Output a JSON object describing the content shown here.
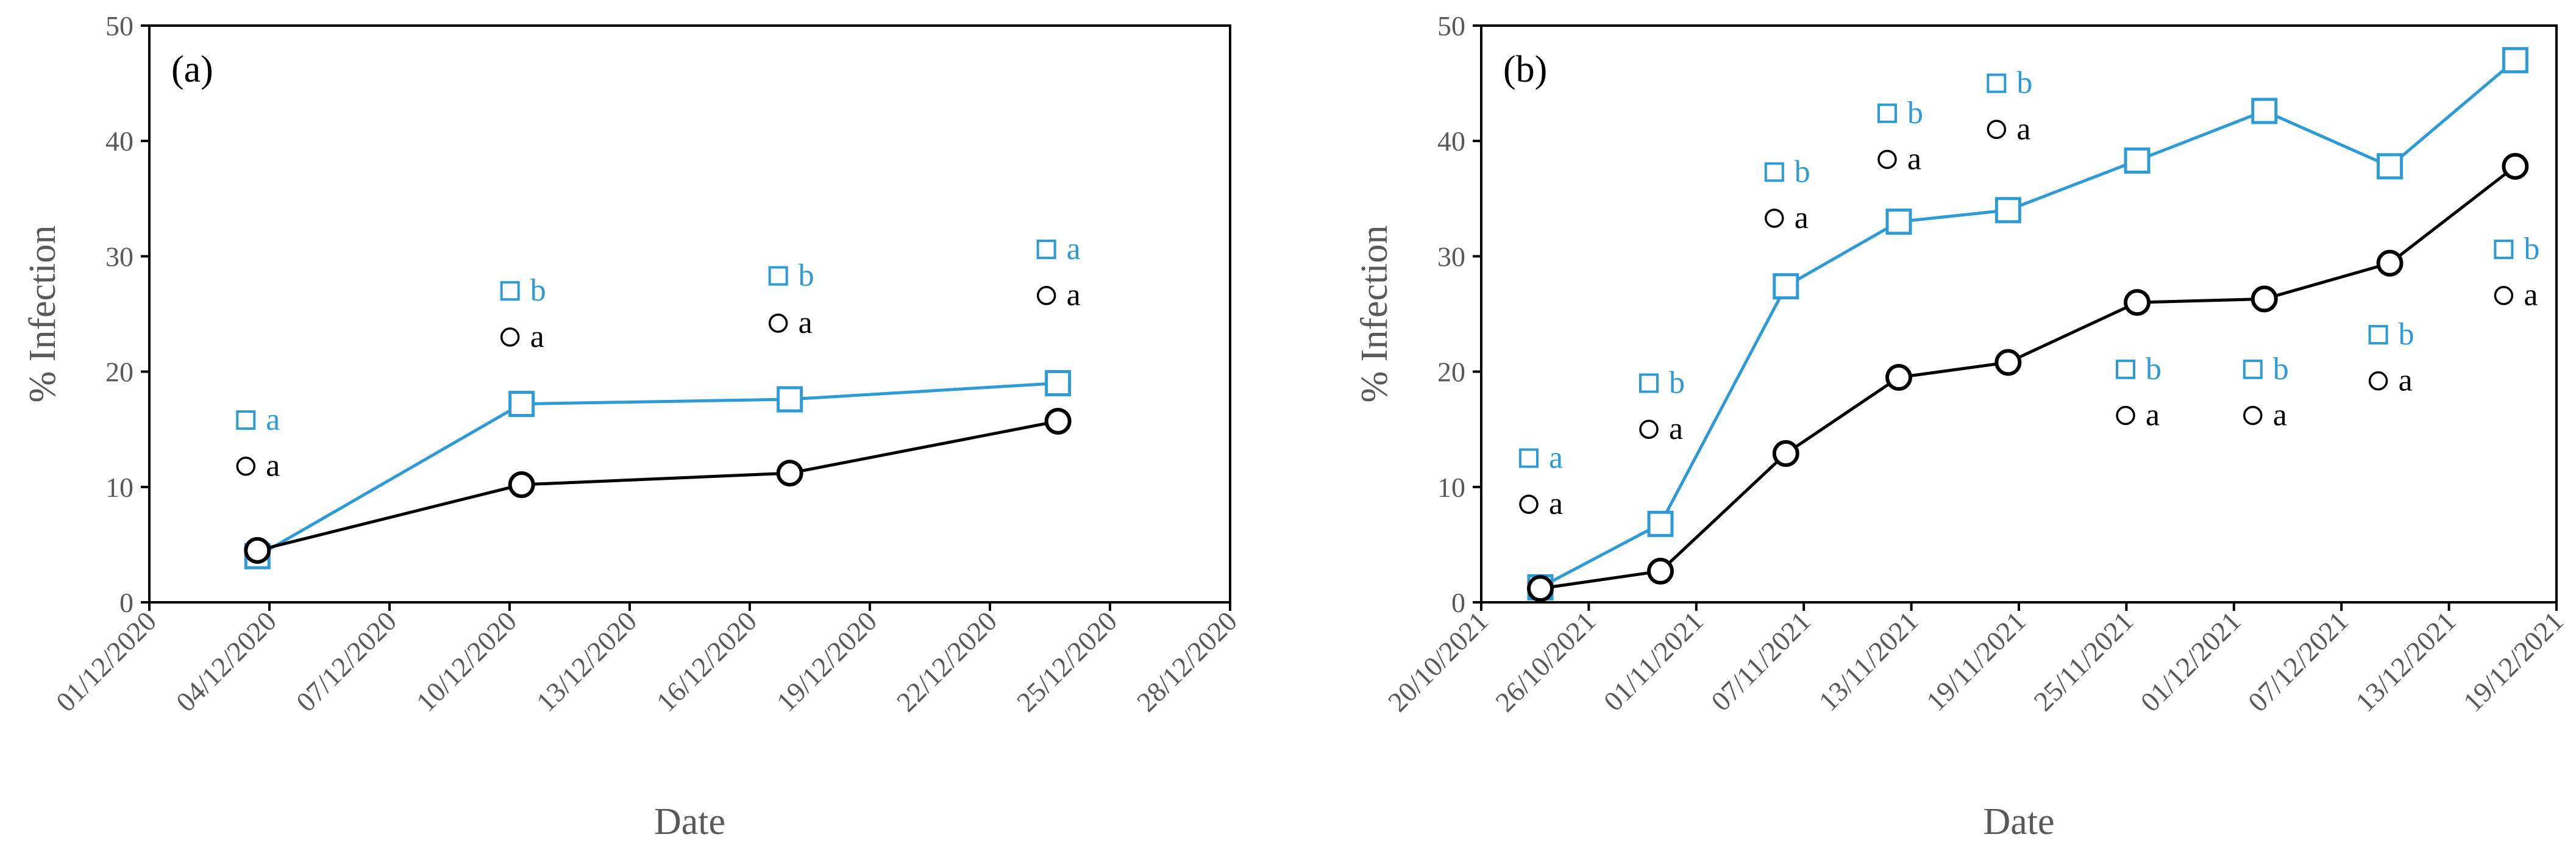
{
  "colors": {
    "series_square": "#2e9bd6",
    "series_circle": "#000000",
    "axis": "#000000",
    "tick_text": "#595959"
  },
  "chart_data": [
    {
      "type": "line",
      "panel_label": "(a)",
      "xlabel": "Date",
      "ylabel": "% Infection",
      "ylim": [
        0,
        50
      ],
      "yticks": [
        "0",
        "10",
        "20",
        "30",
        "40",
        "50"
      ],
      "xlim_days": [
        0,
        27
      ],
      "xtick_labels": [
        "01/12/2020",
        "04/12/2020",
        "07/12/2020",
        "10/12/2020",
        "13/12/2020",
        "16/12/2020",
        "19/12/2020",
        "22/12/2020",
        "25/12/2020",
        "28/12/2020"
      ],
      "x_days": [
        2.7,
        9.3,
        16.0,
        22.7
      ],
      "series": [
        {
          "name": "square",
          "marker": "square",
          "values": [
            4.0,
            17.2,
            17.6,
            19.0
          ]
        },
        {
          "name": "circle",
          "marker": "circle",
          "values": [
            4.5,
            10.2,
            11.2,
            15.7
          ]
        }
      ],
      "annotations": [
        {
          "x_day": 2.7,
          "square_value": 15.8,
          "square_letter": "a",
          "circle_value": 11.8,
          "circle_letter": "a"
        },
        {
          "x_day": 9.3,
          "square_value": 27.0,
          "square_letter": "b",
          "circle_value": 23.0,
          "circle_letter": "a"
        },
        {
          "x_day": 16.0,
          "square_value": 28.3,
          "square_letter": "b",
          "circle_value": 24.2,
          "circle_letter": "a"
        },
        {
          "x_day": 22.7,
          "square_value": 30.6,
          "square_letter": "a",
          "circle_value": 26.6,
          "circle_letter": "a"
        }
      ]
    },
    {
      "type": "line",
      "panel_label": "(b)",
      "xlabel": "Date",
      "ylabel": "% Infection",
      "ylim": [
        0,
        50
      ],
      "yticks": [
        "0",
        "10",
        "20",
        "30",
        "40",
        "50"
      ],
      "xlim_days": [
        0,
        60
      ],
      "xtick_labels": [
        "20/10/2021",
        "26/10/2021",
        "01/11/2021",
        "07/11/2021",
        "13/11/2021",
        "19/11/2021",
        "25/11/2021",
        "01/12/2021",
        "07/12/2021",
        "13/12/2021",
        "19/12/2021"
      ],
      "x_days": [
        3.3,
        10.0,
        17.0,
        23.3,
        29.4,
        36.6,
        43.7,
        50.7,
        57.7
      ],
      "series": [
        {
          "name": "square",
          "marker": "square",
          "values": [
            1.3,
            6.8,
            27.4,
            33.0,
            34.0,
            38.3,
            42.6,
            37.8,
            47.0
          ]
        },
        {
          "name": "circle",
          "marker": "circle",
          "values": [
            1.2,
            2.7,
            12.9,
            19.5,
            20.8,
            26.0,
            26.3,
            29.4,
            37.8
          ]
        }
      ],
      "annotations": [
        {
          "x_day": 3.3,
          "square_value": 12.5,
          "square_letter": "a",
          "circle_value": 8.5,
          "circle_letter": "a"
        },
        {
          "x_day": 10.0,
          "square_value": 19.0,
          "square_letter": "b",
          "circle_value": 15.0,
          "circle_letter": "a"
        },
        {
          "x_day": 17.0,
          "square_value": 37.3,
          "square_letter": "b",
          "circle_value": 33.3,
          "circle_letter": "a"
        },
        {
          "x_day": 23.3,
          "square_value": 42.4,
          "square_letter": "b",
          "circle_value": 38.4,
          "circle_letter": "a"
        },
        {
          "x_day": 29.4,
          "square_value": 45.0,
          "square_letter": "b",
          "circle_value": 41.0,
          "circle_letter": "a"
        },
        {
          "x_day": 36.6,
          "square_value": 20.2,
          "square_letter": "b",
          "circle_value": 16.2,
          "circle_letter": "a"
        },
        {
          "x_day": 43.7,
          "square_value": 20.2,
          "square_letter": "b",
          "circle_value": 16.2,
          "circle_letter": "a"
        },
        {
          "x_day": 50.7,
          "square_value": 23.2,
          "square_letter": "b",
          "circle_value": 19.2,
          "circle_letter": "a"
        },
        {
          "x_day": 57.7,
          "square_value": 30.6,
          "square_letter": "b",
          "circle_value": 26.6,
          "circle_letter": "a"
        }
      ]
    }
  ]
}
